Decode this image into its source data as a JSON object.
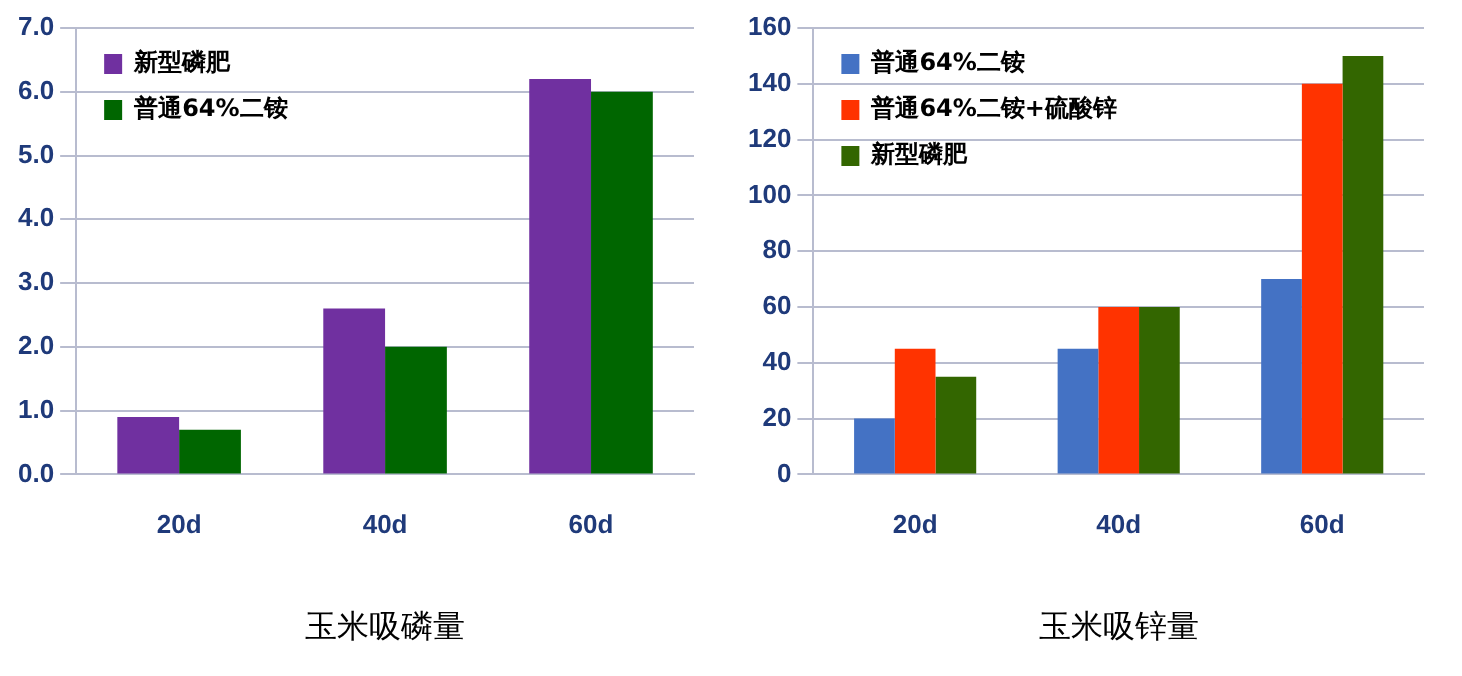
{
  "chart_data": [
    {
      "type": "bar",
      "xlabel": "玉米吸磷量",
      "categories": [
        "20d",
        "40d",
        "60d"
      ],
      "series": [
        {
          "name": "新型磷肥",
          "color": "#7030a0",
          "values": [
            0.9,
            2.6,
            6.2
          ]
        },
        {
          "name": "普通64%二铵",
          "color": "#006600",
          "values": [
            0.7,
            2.0,
            6.0
          ]
        }
      ],
      "ylim": [
        0,
        7
      ],
      "yticks": [
        {
          "value": 0,
          "label": "0.0"
        },
        {
          "value": 1,
          "label": "1.0"
        },
        {
          "value": 2,
          "label": "2.0"
        },
        {
          "value": 3,
          "label": "3.0"
        },
        {
          "value": 4,
          "label": "4.0"
        },
        {
          "value": 5,
          "label": "5.0"
        },
        {
          "value": 6,
          "label": "6.0"
        },
        {
          "value": 7,
          "label": "7.0"
        }
      ],
      "grid": "y",
      "legend": "top left"
    },
    {
      "type": "bar",
      "xlabel": "玉米吸锌量",
      "categories": [
        "20d",
        "40d",
        "60d"
      ],
      "series": [
        {
          "name": "普通64%二铵",
          "color": "#4472c4",
          "values": [
            20,
            45,
            70
          ]
        },
        {
          "name": "普通64%二铵+硫酸锌",
          "color": "#ff3300",
          "values": [
            45,
            60,
            140
          ]
        },
        {
          "name": "新型磷肥",
          "color": "#336600",
          "values": [
            35,
            60,
            150
          ]
        }
      ],
      "ylim": [
        0,
        160
      ],
      "yticks": [
        0,
        20,
        40,
        60,
        80,
        100,
        120,
        140,
        160
      ],
      "grid": "y",
      "legend": "top left"
    }
  ]
}
